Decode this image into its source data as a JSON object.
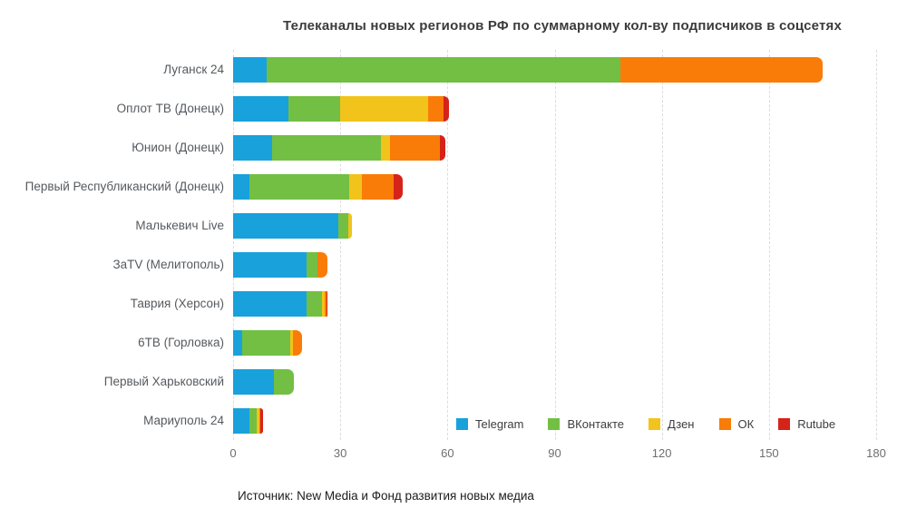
{
  "chart_data": {
    "type": "bar",
    "variant": "horizontal-stacked",
    "title": "Телеканалы новых регионов РФ по суммарному кол-ву подписчиков в соцсетях",
    "categories": [
      "Луганск 24",
      "Оплот ТВ (Донецк)",
      "Юнион (Донецк)",
      "Первый Республиканский (Донецк)",
      "Малькевич Live",
      "ЗаTV (Мелитополь)",
      "Таврия (Херсон)",
      "6ТВ (Горловка)",
      "Первый Харьковский",
      "Мариуполь 24"
    ],
    "series": [
      {
        "name": "Telegram",
        "color": "#19a1db",
        "values": [
          9.5,
          15.5,
          11,
          4.5,
          29.5,
          20.5,
          20.5,
          2.5,
          11.5,
          4.5
        ]
      },
      {
        "name": "ВКонтакте",
        "color": "#72bf44",
        "values": [
          99,
          14.5,
          30.5,
          28,
          2.8,
          3,
          4.4,
          13.5,
          5.5,
          2.2
        ]
      },
      {
        "name": "Дзен",
        "color": "#f2c31b",
        "values": [
          0,
          24.5,
          2.5,
          3.5,
          1,
          0,
          0.7,
          0.7,
          0,
          0.6
        ]
      },
      {
        "name": "ОК",
        "color": "#f97c09",
        "values": [
          56.5,
          4.5,
          14,
          9,
          0,
          3,
          0.5,
          2.5,
          0,
          0.4
        ]
      },
      {
        "name": "Rutube",
        "color": "#d6231a",
        "values": [
          0,
          1.5,
          1.5,
          2.5,
          0,
          0,
          0.4,
          0,
          0,
          0.6
        ]
      }
    ],
    "x_ticks": [
      0,
      30,
      60,
      90,
      120,
      150,
      180
    ],
    "xlim": [
      0,
      180
    ],
    "xlabel": "",
    "ylabel": "",
    "grid": "vertical-dashed",
    "legend_position": "bottom-right-inside"
  },
  "footer": {
    "source": "Источник: New Media и Фонд развития новых медиа"
  }
}
